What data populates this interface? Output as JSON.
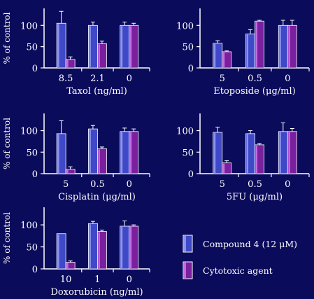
{
  "colors": {
    "background": "#0b0b5c",
    "compound_bar": "#3f49c8",
    "compound_hilite": "#8a93f0",
    "agent_bar": "#7a1f9e",
    "agent_hilite": "#c46be0",
    "axis": "#ffffff",
    "error_bar": "#ffffff"
  },
  "legend": {
    "compound_label": "Compound 4 (12 μM)",
    "agent_label": "Cytotoxic agent"
  },
  "chart_data": [
    {
      "type": "bar",
      "title": "",
      "xlabel": "Taxol (ng/ml)",
      "ylabel": "% of control",
      "ylim": [
        0,
        140
      ],
      "yticks": [
        "0",
        "50",
        "100"
      ],
      "categories": [
        "8.5",
        "2.1",
        "0"
      ],
      "series": [
        {
          "name": "Compound 4 (12 μM)",
          "values": [
            105,
            100,
            100
          ],
          "errors": [
            28,
            8,
            8
          ]
        },
        {
          "name": "Cytotoxic agent",
          "values": [
            20,
            57,
            100
          ],
          "errors": [
            6,
            6,
            5
          ]
        }
      ]
    },
    {
      "type": "bar",
      "title": "",
      "xlabel": "Etoposide (μg/ml)",
      "ylabel": "",
      "ylim": [
        0,
        140
      ],
      "yticks": [
        "0",
        "50",
        "100"
      ],
      "categories": [
        "5",
        "0.5",
        "0"
      ],
      "series": [
        {
          "name": "Compound 4 (12 μM)",
          "values": [
            58,
            80,
            100
          ],
          "errors": [
            6,
            10,
            12
          ]
        },
        {
          "name": "Cytotoxic agent",
          "values": [
            38,
            110,
            100
          ],
          "errors": [
            2,
            2,
            12
          ]
        }
      ]
    },
    {
      "type": "bar",
      "title": "",
      "xlabel": "Cisplatin (μg/ml)",
      "ylabel": "% of control",
      "ylim": [
        0,
        140
      ],
      "yticks": [
        "0",
        "50",
        "100"
      ],
      "categories": [
        "5",
        "0.5",
        "0"
      ],
      "series": [
        {
          "name": "Compound 4 (12 μM)",
          "values": [
            93,
            104,
            98
          ],
          "errors": [
            30,
            8,
            8
          ]
        },
        {
          "name": "Cytotoxic agent",
          "values": [
            10,
            58,
            98
          ],
          "errors": [
            6,
            4,
            6
          ]
        }
      ]
    },
    {
      "type": "bar",
      "title": "",
      "xlabel": "5FU (μg/ml)",
      "ylabel": "",
      "ylim": [
        0,
        140
      ],
      "yticks": [
        "0",
        "50",
        "100"
      ],
      "categories": [
        "5",
        "0.5",
        "0"
      ],
      "series": [
        {
          "name": "Compound 4 (12 μM)",
          "values": [
            96,
            93,
            98
          ],
          "errors": [
            12,
            7,
            20
          ]
        },
        {
          "name": "Cytotoxic agent",
          "values": [
            25,
            67,
            98
          ],
          "errors": [
            5,
            3,
            7
          ]
        }
      ]
    },
    {
      "type": "bar",
      "title": "",
      "xlabel": "Doxorubicin (ng/ml)",
      "ylabel": "% of control",
      "ylim": [
        0,
        140
      ],
      "yticks": [
        "0",
        "50",
        "100"
      ],
      "categories": [
        "10",
        "1",
        "0"
      ],
      "series": [
        {
          "name": "Compound 4 (12 μM)",
          "values": [
            80,
            103,
            97
          ],
          "errors": [
            0,
            5,
            12
          ]
        },
        {
          "name": "Cytotoxic agent",
          "values": [
            15,
            85,
            97
          ],
          "errors": [
            3,
            3,
            3
          ]
        }
      ]
    }
  ]
}
